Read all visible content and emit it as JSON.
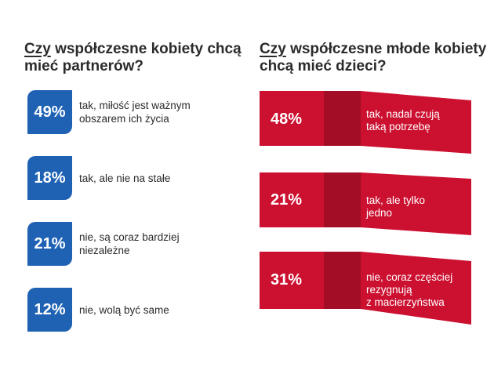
{
  "left": {
    "title_underlined": "Czy",
    "title_rest": " współczesne kobiety chcą mieć partnerów?",
    "items": [
      {
        "value": "49%",
        "label": "tak, miłość jest ważnym\nobszarem ich życia"
      },
      {
        "value": "18%",
        "label": "tak, ale nie na stałe"
      },
      {
        "value": "21%",
        "label": "nie, są coraz bardziej\nniezależne"
      },
      {
        "value": "12%",
        "label": "nie, wolą być same"
      }
    ]
  },
  "right": {
    "title_underlined": "Czy",
    "title_rest": " współczesne młode kobiety chcą mieć dzieci?",
    "items": [
      {
        "value": "48%",
        "label": "tak, nadal czują\ntaką potrzebę"
      },
      {
        "value": "21%",
        "label": "tak, ale tylko\njedno"
      },
      {
        "value": "31%",
        "label": "nie, coraz częściej\nrezygnują\nz macierzyństwa"
      }
    ]
  },
  "colors": {
    "blue_badge": "#1f62b4",
    "red_main": "#cc1030",
    "red_dark": "#a30d26",
    "red_fold": "#b80e2b",
    "title_text": "#2b2b2b"
  },
  "chart_data": [
    {
      "type": "table",
      "title": "Czy współczesne kobiety chcą mieć partnerów?",
      "categories": [
        "tak, miłość jest ważnym obszarem ich życia",
        "tak, ale nie na stałe",
        "nie, są coraz bardziej niezależne",
        "nie, wolą być same"
      ],
      "values": [
        49,
        18,
        21,
        12
      ]
    },
    {
      "type": "table",
      "title": "Czy współczesne młode kobiety chcą mieć dzieci?",
      "categories": [
        "tak, nadal czują taką potrzebę",
        "tak, ale tylko jedno",
        "nie, coraz częściej rezygnują z macierzyństwa"
      ],
      "values": [
        48,
        21,
        31
      ]
    }
  ]
}
